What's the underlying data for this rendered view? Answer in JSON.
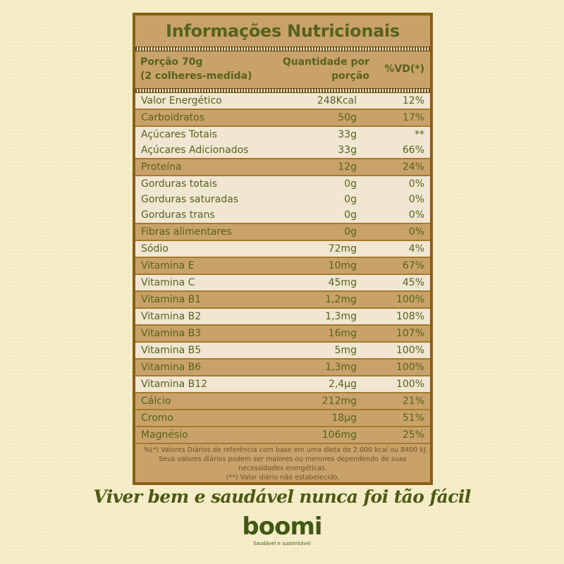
{
  "title": "Informações Nutricionais",
  "header": {
    "serving_line1": "Porção 70g",
    "serving_line2": "(2 colheres-medida)",
    "quantity_line1": "Quantidade por",
    "quantity_line2": "porção",
    "vd": "%VD(*)"
  },
  "groups": [
    {
      "shade": "light",
      "rows": [
        {
          "name": "Valor Energético",
          "qty": "248Kcal",
          "vd": "12%"
        }
      ]
    },
    {
      "shade": "dark",
      "rows": [
        {
          "name": "Carboidratos",
          "qty": "50g",
          "vd": "17%"
        }
      ]
    },
    {
      "shade": "light",
      "rows": [
        {
          "name": "Açúcares Totais",
          "qty": "33g",
          "vd": "**"
        },
        {
          "name": "Açúcares Adicionados",
          "qty": "33g",
          "vd": "66%"
        }
      ]
    },
    {
      "shade": "dark",
      "rows": [
        {
          "name": "Proteína",
          "qty": "12g",
          "vd": "24%"
        }
      ]
    },
    {
      "shade": "light",
      "rows": [
        {
          "name": "Gorduras totais",
          "qty": "0g",
          "vd": "0%"
        },
        {
          "name": "Gorduras saturadas",
          "qty": "0g",
          "vd": "0%"
        },
        {
          "name": "Gorduras trans",
          "qty": "0g",
          "vd": "0%"
        }
      ]
    },
    {
      "shade": "dark",
      "rows": [
        {
          "name": "Fibras alimentares",
          "qty": "0g",
          "vd": "0%"
        }
      ]
    },
    {
      "shade": "light",
      "rows": [
        {
          "name": "Sódio",
          "qty": "72mg",
          "vd": "4%"
        }
      ]
    },
    {
      "shade": "dark",
      "rows": [
        {
          "name": "Vitamina E",
          "qty": "10mg",
          "vd": "67%"
        }
      ]
    },
    {
      "shade": "light",
      "rows": [
        {
          "name": "Vitamina C",
          "qty": "45mg",
          "vd": "45%"
        }
      ]
    },
    {
      "shade": "dark",
      "rows": [
        {
          "name": "Vitamina B1",
          "qty": "1,2mg",
          "vd": "100%"
        }
      ]
    },
    {
      "shade": "light",
      "rows": [
        {
          "name": "Vitamina B2",
          "qty": "1,3mg",
          "vd": "108%"
        }
      ]
    },
    {
      "shade": "dark",
      "rows": [
        {
          "name": "Vitamina B3",
          "qty": "16mg",
          "vd": "107%"
        }
      ]
    },
    {
      "shade": "light",
      "rows": [
        {
          "name": "Vitamina B5",
          "qty": "5mg",
          "vd": "100%"
        }
      ]
    },
    {
      "shade": "dark",
      "rows": [
        {
          "name": "Vitamina B6",
          "qty": "1,3mg",
          "vd": "100%"
        }
      ]
    },
    {
      "shade": "light",
      "rows": [
        {
          "name": "Vitamina B12",
          "qty": "2,4µg",
          "vd": "100%"
        }
      ]
    },
    {
      "shade": "dark",
      "rows": [
        {
          "name": "Cálcio",
          "qty": "212mg",
          "vd": "21%"
        }
      ]
    },
    {
      "shade": "dark",
      "rows": [
        {
          "name": "Cromo",
          "qty": "18µg",
          "vd": "51%"
        }
      ]
    },
    {
      "shade": "dark",
      "rows": [
        {
          "name": "Magnésio",
          "qty": "106mg",
          "vd": "25%"
        }
      ]
    }
  ],
  "footnote": [
    "%(*) Valores Diários de referência com base em uma dieta de 2.000 kcal ou 8400 kJ.",
    "Seus valores diários podem ser maiores ou menores dependendo de suas",
    "necessidades energéticas.",
    "(**) Valor diário não estabelecido."
  ],
  "slogan": "Viver bem e saudável nunca foi tão fácil",
  "brand": {
    "logo_text": "boomi",
    "tagline": "Saudável e sustentável"
  },
  "colors": {
    "text_green": "#57621c",
    "panel_tan": "#c9a26b",
    "row_light": "#f0e6d2",
    "border_brown": "#8b5e14",
    "background": "#f6eecb"
  }
}
